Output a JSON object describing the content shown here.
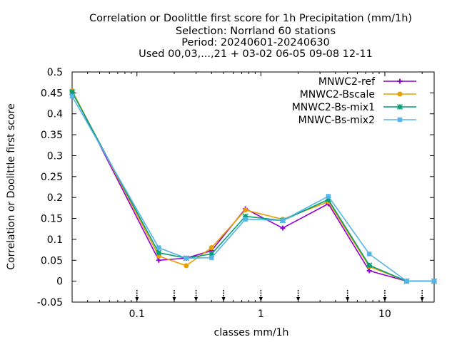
{
  "chart_data": {
    "type": "line",
    "title_lines": [
      "Correlation or Doolittle first score  for 1h Precipitation (mm/1h)",
      "Selection: Norrland     60 stations",
      "Period: 20240601-20240630",
      "Used 00,03,...,21 + 03-02 06-05 09-08 12-11"
    ],
    "xlabel": "classes mm/1h",
    "ylabel": "Correlation or Doolittle first score",
    "x_scale": "log",
    "xlim": [
      0.03,
      25
    ],
    "ylim": [
      -0.05,
      0.5
    ],
    "x_ticks": [
      {
        "value": 0.1,
        "label": "0.1"
      },
      {
        "value": 1,
        "label": "1"
      },
      {
        "value": 10,
        "label": "10"
      }
    ],
    "y_ticks": [
      {
        "value": -0.05,
        "label": "-0.05"
      },
      {
        "value": 0,
        "label": "0"
      },
      {
        "value": 0.05,
        "label": "0.05"
      },
      {
        "value": 0.1,
        "label": "0.1"
      },
      {
        "value": 0.15,
        "label": "0.15"
      },
      {
        "value": 0.2,
        "label": "0.2"
      },
      {
        "value": 0.25,
        "label": "0.25"
      },
      {
        "value": 0.3,
        "label": "0.3"
      },
      {
        "value": 0.35,
        "label": "0.35"
      },
      {
        "value": 0.4,
        "label": "0.4"
      },
      {
        "value": 0.45,
        "label": "0.45"
      },
      {
        "value": 0.5,
        "label": "0.5"
      }
    ],
    "class_thresholds": [
      0.1,
      0.2,
      0.3,
      0.5,
      1,
      2,
      5,
      10,
      20
    ],
    "x": [
      0.03,
      0.15,
      0.25,
      0.4,
      0.75,
      1.5,
      3.5,
      7.5,
      15,
      25
    ],
    "series": [
      {
        "name": "MNWC2-ref",
        "color": "#9400d3",
        "marker": "cross",
        "values": [
          0.455,
          0.05,
          0.055,
          0.073,
          0.173,
          0.127,
          0.185,
          0.025,
          0.0,
          0.0
        ]
      },
      {
        "name": "MNWC2-Bscale",
        "color": "#e69f00",
        "marker": "circle",
        "values": [
          0.455,
          0.06,
          0.037,
          0.08,
          0.17,
          0.148,
          0.19,
          0.035,
          0.0,
          0.0
        ]
      },
      {
        "name": "MNWC2-Bs-mix1",
        "color": "#009e73",
        "marker": "star",
        "values": [
          0.452,
          0.068,
          0.055,
          0.065,
          0.155,
          0.145,
          0.195,
          0.038,
          0.0,
          0.0
        ]
      },
      {
        "name": "MNWC-Bs-mix2",
        "color": "#56b4e9",
        "marker": "box",
        "values": [
          0.442,
          0.08,
          0.055,
          0.056,
          0.148,
          0.145,
          0.203,
          0.065,
          0.0,
          0.0
        ]
      }
    ],
    "grid": false,
    "legend_position": "top-right"
  }
}
